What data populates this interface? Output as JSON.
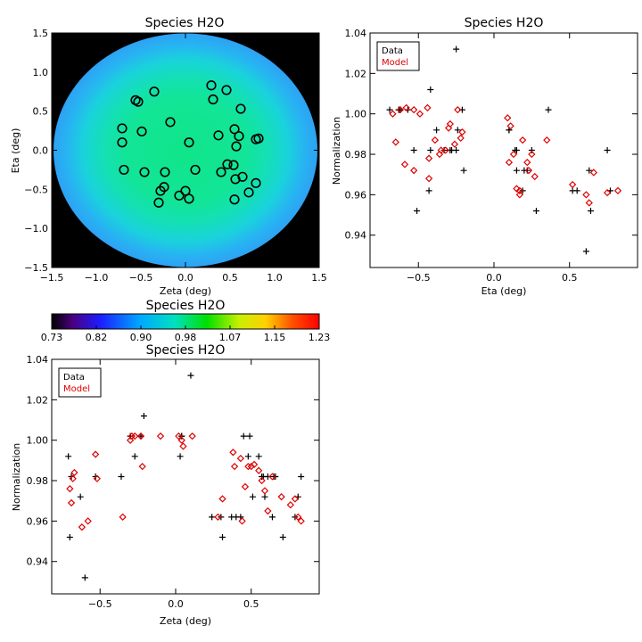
{
  "colors": {
    "data": "#000000",
    "model": "#e00000"
  },
  "chart_data": [
    {
      "type": "heatmap",
      "title": "Species H2O",
      "xlabel": "Zeta (deg)",
      "ylabel": "Eta (deg)",
      "xlim": [
        -1.5,
        1.5
      ],
      "ylim": [
        -1.5,
        1.5
      ],
      "xticks": [
        "-1.5",
        "-1.0",
        "-0.5",
        "0.0",
        "0.5",
        "1.0",
        "1.5"
      ],
      "yticks": [
        "-1.5",
        "-1.0",
        "-0.5",
        "0.0",
        "0.5",
        "1.0",
        "1.5"
      ],
      "background": "black",
      "field": "circular disk, normalization ~0.96-0.98 (green) in center fading to ~0.90 (blue) at edge",
      "markers": "black open circles",
      "points": [
        {
          "x": 0.29,
          "y": 0.83
        },
        {
          "x": 0.46,
          "y": 0.77
        },
        {
          "x": -0.35,
          "y": 0.75
        },
        {
          "x": 0.31,
          "y": 0.65
        },
        {
          "x": -0.56,
          "y": 0.64
        },
        {
          "x": -0.53,
          "y": 0.62
        },
        {
          "x": 0.62,
          "y": 0.53
        },
        {
          "x": -0.17,
          "y": 0.36
        },
        {
          "x": 0.55,
          "y": 0.27
        },
        {
          "x": -0.71,
          "y": 0.28
        },
        {
          "x": -0.49,
          "y": 0.24
        },
        {
          "x": 0.37,
          "y": 0.19
        },
        {
          "x": 0.6,
          "y": 0.18
        },
        {
          "x": 0.82,
          "y": 0.15
        },
        {
          "x": 0.79,
          "y": 0.14
        },
        {
          "x": -0.71,
          "y": 0.1
        },
        {
          "x": 0.04,
          "y": 0.1
        },
        {
          "x": 0.57,
          "y": 0.05
        },
        {
          "x": 0.47,
          "y": -0.18
        },
        {
          "x": 0.54,
          "y": -0.19
        },
        {
          "x": -0.69,
          "y": -0.25
        },
        {
          "x": 0.11,
          "y": -0.25
        },
        {
          "x": 0.4,
          "y": -0.28
        },
        {
          "x": -0.46,
          "y": -0.28
        },
        {
          "x": -0.23,
          "y": -0.28
        },
        {
          "x": 0.64,
          "y": -0.34
        },
        {
          "x": 0.56,
          "y": -0.37
        },
        {
          "x": 0.79,
          "y": -0.42
        },
        {
          "x": -0.24,
          "y": -0.47
        },
        {
          "x": -0.28,
          "y": -0.52
        },
        {
          "x": 0.0,
          "y": -0.52
        },
        {
          "x": 0.71,
          "y": -0.54
        },
        {
          "x": -0.07,
          "y": -0.58
        },
        {
          "x": 0.04,
          "y": -0.62
        },
        {
          "x": 0.55,
          "y": -0.63
        },
        {
          "x": -0.3,
          "y": -0.67
        }
      ]
    },
    {
      "type": "scatter",
      "title": "Species H2O",
      "xlabel": "Eta (deg)",
      "ylabel": "Normalization",
      "xlim": [
        -0.82,
        0.95
      ],
      "ylim": [
        0.924,
        1.04
      ],
      "xticks": [
        "-0.5",
        "0.0",
        "0.5"
      ],
      "yticks": [
        "0.94",
        "0.96",
        "0.98",
        "1.00",
        "1.02",
        "1.04"
      ],
      "legend": {
        "position": "top-left",
        "entries": [
          "Data",
          "Model"
        ]
      },
      "series": [
        {
          "name": "Data",
          "marker": "plus",
          "x": [
            -0.69,
            -0.63,
            -0.25,
            -0.42,
            -0.38,
            -0.33,
            -0.29,
            -0.25,
            -0.21,
            -0.63,
            -0.57,
            -0.62,
            -0.2,
            -0.51,
            -0.43,
            -0.24,
            -0.28,
            -0.42,
            -0.53,
            0.1,
            0.15,
            0.22,
            0.28,
            0.36,
            0.1,
            0.14,
            0.15,
            0.19,
            0.2,
            0.25,
            0.52,
            0.55,
            0.61,
            0.63,
            0.64,
            0.75,
            0.77
          ],
          "y": [
            1.002,
            1.002,
            1.032,
            1.012,
            0.992,
            0.982,
            0.982,
            0.982,
            1.002,
            1.002,
            1.002,
            1.002,
            0.972,
            0.952,
            0.962,
            0.992,
            0.982,
            0.982,
            0.982,
            0.992,
            0.982,
            0.972,
            0.952,
            1.002,
            0.992,
            0.982,
            0.972,
            0.962,
            0.972,
            0.982,
            0.962,
            0.962,
            0.932,
            0.972,
            0.952,
            0.982,
            0.962
          ]
        },
        {
          "name": "Model",
          "marker": "diamond",
          "x": [
            -0.67,
            -0.65,
            -0.62,
            -0.58,
            -0.53,
            -0.49,
            -0.44,
            -0.43,
            -0.39,
            -0.36,
            -0.32,
            -0.3,
            -0.29,
            -0.26,
            -0.24,
            -0.22,
            -0.21,
            -0.59,
            -0.53,
            -0.43,
            -0.35,
            0.09,
            0.11,
            0.13,
            0.15,
            0.17,
            0.19,
            0.22,
            0.25,
            0.27,
            0.35,
            0.17,
            0.1,
            0.23,
            0.52,
            0.61,
            0.63,
            0.66,
            0.75,
            0.82
          ],
          "y": [
            1.0,
            0.986,
            1.002,
            1.003,
            1.002,
            1.0,
            1.003,
            0.968,
            0.987,
            0.98,
            0.982,
            0.993,
            0.995,
            0.985,
            1.002,
            0.988,
            0.991,
            0.975,
            0.972,
            0.978,
            0.982,
            0.998,
            0.994,
            0.98,
            0.963,
            0.96,
            0.987,
            0.976,
            0.98,
            0.969,
            0.987,
            0.962,
            0.976,
            0.972,
            0.965,
            0.96,
            0.956,
            0.971,
            0.961,
            0.962
          ]
        }
      ]
    },
    {
      "type": "scatter",
      "title": "Species H2O",
      "xlabel": "Zeta (deg)",
      "ylabel": "Normalization",
      "xlim": [
        -0.82,
        0.95
      ],
      "ylim": [
        0.924,
        1.04
      ],
      "xticks": [
        "-0.5",
        "0.0",
        "0.5"
      ],
      "yticks": [
        "0.94",
        "0.96",
        "0.98",
        "1.00",
        "1.02",
        "1.04"
      ],
      "legend": {
        "position": "top-left",
        "entries": [
          "Data",
          "Model"
        ]
      },
      "series": [
        {
          "name": "Data",
          "marker": "plus",
          "x": [
            -0.71,
            -0.7,
            -0.69,
            -0.63,
            -0.6,
            -0.53,
            -0.36,
            -0.3,
            -0.27,
            -0.23,
            -0.21,
            0.03,
            0.04,
            0.1,
            0.31,
            0.4,
            0.45,
            0.49,
            0.55,
            0.58,
            0.64,
            0.66,
            0.71,
            0.79,
            0.81,
            0.83,
            0.04,
            0.24,
            0.3,
            0.37,
            0.43,
            0.59,
            0.51,
            0.61,
            0.65,
            0.48,
            0.57
          ],
          "y": [
            0.992,
            0.952,
            0.982,
            0.972,
            0.932,
            0.982,
            0.982,
            1.002,
            0.992,
            1.002,
            1.012,
            0.992,
            1.002,
            1.032,
            0.952,
            0.962,
            1.002,
            1.002,
            0.992,
            0.982,
            0.962,
            0.982,
            0.952,
            0.962,
            0.972,
            0.982,
            1.002,
            0.962,
            0.962,
            0.962,
            0.962,
            0.972,
            0.972,
            0.982,
            0.982,
            0.992,
            0.982
          ]
        },
        {
          "name": "Model",
          "marker": "diamond",
          "x": [
            -0.7,
            -0.69,
            -0.68,
            -0.67,
            -0.62,
            -0.58,
            -0.53,
            -0.52,
            -0.35,
            -0.3,
            -0.29,
            -0.27,
            -0.23,
            -0.22,
            -0.1,
            0.02,
            0.04,
            0.05,
            0.11,
            0.28,
            0.31,
            0.38,
            0.39,
            0.43,
            0.44,
            0.46,
            0.48,
            0.5,
            0.52,
            0.55,
            0.57,
            0.59,
            0.61,
            0.64,
            0.7,
            0.76,
            0.79,
            0.81,
            0.83
          ],
          "y": [
            0.976,
            0.969,
            0.981,
            0.984,
            0.957,
            0.96,
            0.993,
            0.981,
            0.962,
            1.0,
            1.002,
            1.002,
            1.002,
            0.987,
            1.002,
            1.002,
            1.0,
            0.997,
            1.002,
            0.962,
            0.971,
            0.994,
            0.987,
            0.991,
            0.96,
            0.977,
            0.987,
            0.987,
            0.988,
            0.985,
            0.98,
            0.975,
            0.965,
            0.982,
            0.972,
            0.968,
            0.971,
            0.962,
            0.96
          ]
        }
      ]
    }
  ],
  "colorbar": {
    "title": "Species H2O",
    "ticks": [
      "0.73",
      "0.82",
      "0.90",
      "0.98",
      "1.07",
      "1.15",
      "1.23"
    ],
    "range": [
      0.73,
      1.23
    ],
    "colormap": "rainbow"
  }
}
